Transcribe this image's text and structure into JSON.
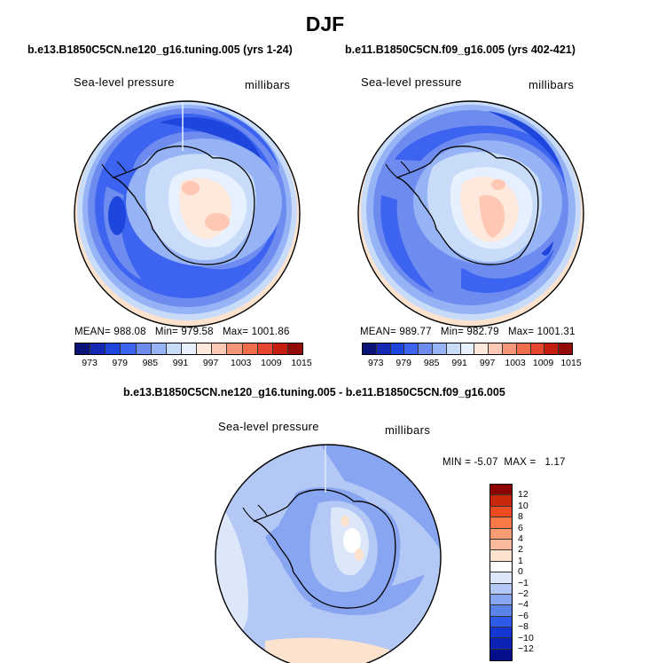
{
  "main_title": "DJF",
  "panels": [
    {
      "title": "b.e13.B1850C5CN.ne120_g16.tuning.005 (yrs 1-24)",
      "field_label": "Sea-level pressure",
      "units": "millibars",
      "mean_label": "MEAN=",
      "mean_value": "988.08",
      "min_label": "Min=",
      "min_value": "979.58",
      "max_label": "Max=",
      "max_value": "1001.86"
    },
    {
      "title": "b.e11.B1850C5CN.f09_g16.005 (yrs 402-421)",
      "field_label": "Sea-level pressure",
      "units": "millibars",
      "mean_label": "MEAN=",
      "mean_value": "989.77",
      "min_label": "Min=",
      "min_value": "982.79",
      "max_label": "Max=",
      "max_value": "1001.31"
    }
  ],
  "colorbar": {
    "colors": [
      "#0a1478",
      "#1428b4",
      "#1e46dc",
      "#3c64f0",
      "#6e8cf0",
      "#96b4f5",
      "#c8dcfa",
      "#e6f0ff",
      "#ffe8dc",
      "#ffc8b4",
      "#fa9678",
      "#f06e4b",
      "#e6462d",
      "#c31e0f",
      "#910a05"
    ],
    "ticks": [
      "973",
      "979",
      "985",
      "991",
      "997",
      "1003",
      "1009",
      "1015"
    ]
  },
  "difference": {
    "title": "b.e13.B1850C5CN.ne120_g16.tuning.005 - b.e11.B1850C5CN.f09_g16.005",
    "field_label": "Sea-level pressure",
    "units": "millibars",
    "min_label": "MIN =",
    "min_value": "-5.07",
    "max_label": "MAX =",
    "max_value": "1.17",
    "colorbar_colors": [
      "#8c0000",
      "#c8280a",
      "#eb4b1e",
      "#fa7846",
      "#fa9b73",
      "#fab99b",
      "#fde3cd",
      "#ffffff",
      "#dce8fa",
      "#b4c8f5",
      "#87a5f0",
      "#5a82eb",
      "#2d5ae6",
      "#1437d2",
      "#0a23b4",
      "#050f8c"
    ],
    "colorbar_ticks": [
      "12",
      "10",
      "8",
      "6",
      "4",
      "2",
      "1",
      "0",
      "−1",
      "−2",
      "−4",
      "−6",
      "−8",
      "−10",
      "−12"
    ]
  }
}
